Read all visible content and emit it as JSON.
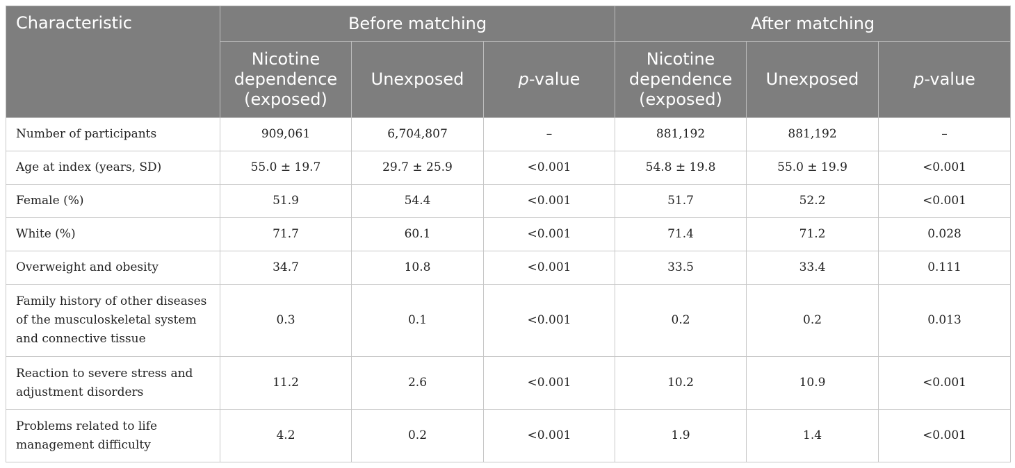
{
  "header": {
    "characteristic": "Characteristic",
    "before": "Before matching",
    "after": "After matching",
    "sub": {
      "exposed": "Nicotine dependence (exposed)",
      "unexposed": "Unexposed",
      "p_italic": "p",
      "p_rest": "-value"
    }
  },
  "rows": [
    {
      "label": "Number of participants",
      "b_exp": "909,061",
      "b_unexp": "6,704,807",
      "b_p": "–",
      "a_exp": "881,192",
      "a_unexp": "881,192",
      "a_p": "–"
    },
    {
      "label": "Age at index (years, SD)",
      "b_exp": "55.0 ± 19.7",
      "b_unexp": "29.7 ± 25.9",
      "b_p": "<0.001",
      "a_exp": "54.8 ± 19.8",
      "a_unexp": "55.0 ± 19.9",
      "a_p": "<0.001"
    },
    {
      "label": "Female (%)",
      "b_exp": "51.9",
      "b_unexp": "54.4",
      "b_p": "<0.001",
      "a_exp": "51.7",
      "a_unexp": "52.2",
      "a_p": "<0.001"
    },
    {
      "label": "White (%)",
      "b_exp": "71.7",
      "b_unexp": "60.1",
      "b_p": "<0.001",
      "a_exp": "71.4",
      "a_unexp": "71.2",
      "a_p": "0.028"
    },
    {
      "label": "Overweight and obesity",
      "b_exp": "34.7",
      "b_unexp": "10.8",
      "b_p": "<0.001",
      "a_exp": "33.5",
      "a_unexp": "33.4",
      "a_p": "0.111"
    },
    {
      "label": "Family history of other diseases of the musculoskeletal system and connective tissue",
      "b_exp": "0.3",
      "b_unexp": "0.1",
      "b_p": "<0.001",
      "a_exp": "0.2",
      "a_unexp": "0.2",
      "a_p": "0.013"
    },
    {
      "label": "Reaction to severe stress and adjustment disorders",
      "b_exp": "11.2",
      "b_unexp": "2.6",
      "b_p": "<0.001",
      "a_exp": "10.2",
      "a_unexp": "10.9",
      "a_p": "<0.001"
    },
    {
      "label": "Problems related to life management difficulty",
      "b_exp": "4.2",
      "b_unexp": "0.2",
      "b_p": "<0.001",
      "a_exp": "1.9",
      "a_unexp": "1.4",
      "a_p": "<0.001"
    }
  ]
}
